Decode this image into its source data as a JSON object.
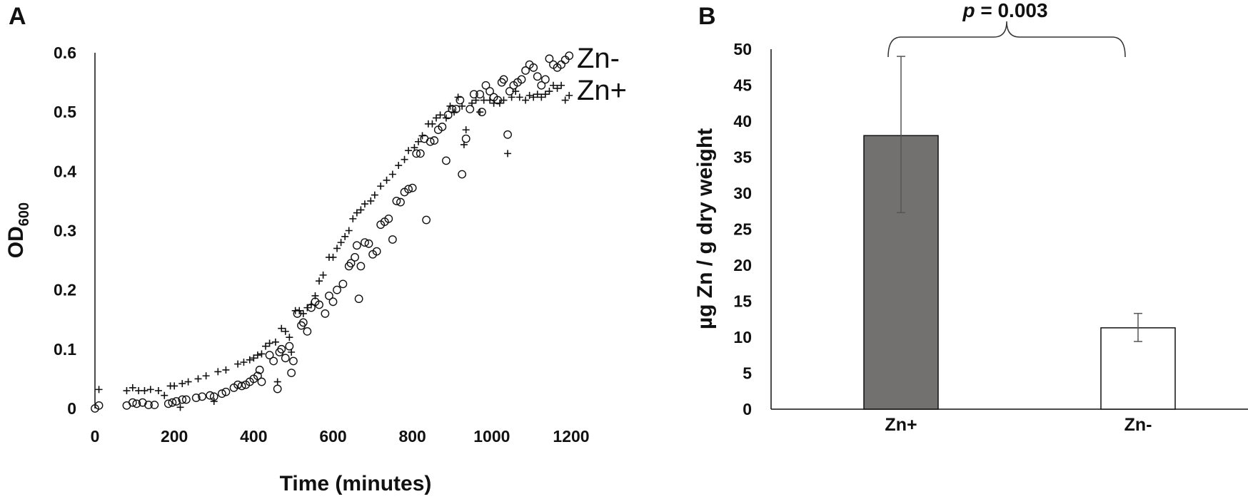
{
  "panels": {
    "a": {
      "letter": "A",
      "y_label_main": "OD",
      "y_label_sub": "600",
      "x_label": "Time (minutes)",
      "series_labels": {
        "zn_minus": "Zn-",
        "zn_plus": "Zn+"
      }
    },
    "b": {
      "letter": "B",
      "y_label": "µg Zn / g dry weight",
      "p_prefix": "p",
      "p_suffix": " = 0.003"
    }
  },
  "chart_data": [
    {
      "type": "scatter",
      "title": "",
      "xlabel": "Time (minutes)",
      "ylabel": "OD600",
      "xlim": [
        0,
        1200
      ],
      "ylim": [
        0,
        0.6
      ],
      "x_ticks": [
        "0",
        "200",
        "400",
        "600",
        "800",
        "1000",
        "1200"
      ],
      "y_ticks": [
        "0",
        "0.1",
        "0.2",
        "0.3",
        "0.4",
        "0.5",
        "0.6"
      ],
      "grid": false,
      "series": [
        {
          "name": "Zn-",
          "marker": "circle",
          "points": [
            [
              0,
              0.0
            ],
            [
              10,
              0.005
            ],
            [
              80,
              0.005
            ],
            [
              95,
              0.01
            ],
            [
              105,
              0.008
            ],
            [
              120,
              0.01
            ],
            [
              135,
              0.006
            ],
            [
              150,
              0.006
            ],
            [
              185,
              0.008
            ],
            [
              195,
              0.01
            ],
            [
              205,
              0.012
            ],
            [
              220,
              0.015
            ],
            [
              230,
              0.015
            ],
            [
              255,
              0.018
            ],
            [
              270,
              0.02
            ],
            [
              290,
              0.022
            ],
            [
              300,
              0.02
            ],
            [
              320,
              0.025
            ],
            [
              330,
              0.028
            ],
            [
              350,
              0.035
            ],
            [
              360,
              0.04
            ],
            [
              370,
              0.038
            ],
            [
              380,
              0.04
            ],
            [
              390,
              0.045
            ],
            [
              400,
              0.05
            ],
            [
              410,
              0.055
            ],
            [
              415,
              0.065
            ],
            [
              420,
              0.045
            ],
            [
              440,
              0.09
            ],
            [
              450,
              0.08
            ],
            [
              460,
              0.033
            ],
            [
              465,
              0.095
            ],
            [
              470,
              0.1
            ],
            [
              480,
              0.085
            ],
            [
              490,
              0.105
            ],
            [
              495,
              0.06
            ],
            [
              500,
              0.08
            ],
            [
              510,
              0.16
            ],
            [
              520,
              0.14
            ],
            [
              525,
              0.145
            ],
            [
              535,
              0.13
            ],
            [
              545,
              0.17
            ],
            [
              555,
              0.18
            ],
            [
              565,
              0.175
            ],
            [
              580,
              0.16
            ],
            [
              590,
              0.19
            ],
            [
              600,
              0.18
            ],
            [
              610,
              0.2
            ],
            [
              625,
              0.21
            ],
            [
              640,
              0.24
            ],
            [
              645,
              0.245
            ],
            [
              655,
              0.255
            ],
            [
              660,
              0.275
            ],
            [
              665,
              0.185
            ],
            [
              670,
              0.24
            ],
            [
              680,
              0.28
            ],
            [
              690,
              0.278
            ],
            [
              700,
              0.26
            ],
            [
              710,
              0.265
            ],
            [
              720,
              0.31
            ],
            [
              730,
              0.315
            ],
            [
              740,
              0.32
            ],
            [
              750,
              0.285
            ],
            [
              760,
              0.35
            ],
            [
              770,
              0.348
            ],
            [
              780,
              0.365
            ],
            [
              790,
              0.37
            ],
            [
              800,
              0.372
            ],
            [
              810,
              0.43
            ],
            [
              820,
              0.43
            ],
            [
              830,
              0.455
            ],
            [
              835,
              0.318
            ],
            [
              845,
              0.45
            ],
            [
              855,
              0.452
            ],
            [
              865,
              0.47
            ],
            [
              875,
              0.475
            ],
            [
              885,
              0.418
            ],
            [
              890,
              0.495
            ],
            [
              900,
              0.505
            ],
            [
              910,
              0.505
            ],
            [
              920,
              0.52
            ],
            [
              925,
              0.395
            ],
            [
              935,
              0.455
            ],
            [
              945,
              0.505
            ],
            [
              955,
              0.53
            ],
            [
              970,
              0.53
            ],
            [
              975,
              0.5
            ],
            [
              985,
              0.545
            ],
            [
              995,
              0.535
            ],
            [
              1005,
              0.525
            ],
            [
              1015,
              0.52
            ],
            [
              1025,
              0.55
            ],
            [
              1030,
              0.555
            ],
            [
              1040,
              0.462
            ],
            [
              1045,
              0.535
            ],
            [
              1055,
              0.545
            ],
            [
              1065,
              0.55
            ],
            [
              1075,
              0.555
            ],
            [
              1085,
              0.57
            ],
            [
              1095,
              0.58
            ],
            [
              1105,
              0.575
            ],
            [
              1115,
              0.56
            ],
            [
              1125,
              0.545
            ],
            [
              1135,
              0.555
            ],
            [
              1145,
              0.59
            ],
            [
              1155,
              0.58
            ],
            [
              1165,
              0.575
            ],
            [
              1175,
              0.58
            ],
            [
              1185,
              0.588
            ],
            [
              1195,
              0.595
            ]
          ]
        },
        {
          "name": "Zn+",
          "marker": "plus",
          "points": [
            [
              10,
              0.032
            ],
            [
              80,
              0.03
            ],
            [
              95,
              0.035
            ],
            [
              110,
              0.03
            ],
            [
              125,
              0.03
            ],
            [
              140,
              0.032
            ],
            [
              160,
              0.03
            ],
            [
              175,
              0.022
            ],
            [
              190,
              0.038
            ],
            [
              200,
              0.038
            ],
            [
              215,
              0.002
            ],
            [
              220,
              0.042
            ],
            [
              235,
              0.045
            ],
            [
              260,
              0.05
            ],
            [
              280,
              0.055
            ],
            [
              300,
              0.012
            ],
            [
              310,
              0.062
            ],
            [
              330,
              0.065
            ],
            [
              360,
              0.075
            ],
            [
              375,
              0.078
            ],
            [
              390,
              0.082
            ],
            [
              400,
              0.085
            ],
            [
              410,
              0.09
            ],
            [
              420,
              0.092
            ],
            [
              430,
              0.105
            ],
            [
              440,
              0.11
            ],
            [
              455,
              0.112
            ],
            [
              460,
              0.045
            ],
            [
              470,
              0.135
            ],
            [
              480,
              0.13
            ],
            [
              490,
              0.12
            ],
            [
              495,
              0.095
            ],
            [
              505,
              0.165
            ],
            [
              515,
              0.165
            ],
            [
              525,
              0.16
            ],
            [
              535,
              0.17
            ],
            [
              545,
              0.175
            ],
            [
              555,
              0.19
            ],
            [
              565,
              0.215
            ],
            [
              575,
              0.225
            ],
            [
              590,
              0.255
            ],
            [
              600,
              0.255
            ],
            [
              610,
              0.27
            ],
            [
              620,
              0.28
            ],
            [
              630,
              0.29
            ],
            [
              640,
              0.3
            ],
            [
              650,
              0.32
            ],
            [
              660,
              0.33
            ],
            [
              670,
              0.335
            ],
            [
              680,
              0.345
            ],
            [
              695,
              0.35
            ],
            [
              705,
              0.36
            ],
            [
              720,
              0.375
            ],
            [
              735,
              0.385
            ],
            [
              750,
              0.395
            ],
            [
              765,
              0.41
            ],
            [
              780,
              0.42
            ],
            [
              790,
              0.435
            ],
            [
              805,
              0.44
            ],
            [
              815,
              0.45
            ],
            [
              825,
              0.46
            ],
            [
              840,
              0.48
            ],
            [
              850,
              0.48
            ],
            [
              860,
              0.49
            ],
            [
              870,
              0.495
            ],
            [
              885,
              0.49
            ],
            [
              895,
              0.51
            ],
            [
              905,
              0.5
            ],
            [
              915,
              0.525
            ],
            [
              925,
              0.51
            ],
            [
              930,
              0.445
            ],
            [
              935,
              0.47
            ],
            [
              950,
              0.515
            ],
            [
              960,
              0.52
            ],
            [
              970,
              0.5
            ],
            [
              980,
              0.52
            ],
            [
              995,
              0.52
            ],
            [
              1005,
              0.515
            ],
            [
              1020,
              0.515
            ],
            [
              1030,
              0.52
            ],
            [
              1040,
              0.43
            ],
            [
              1050,
              0.525
            ],
            [
              1060,
              0.535
            ],
            [
              1070,
              0.525
            ],
            [
              1085,
              0.52
            ],
            [
              1095,
              0.528
            ],
            [
              1105,
              0.525
            ],
            [
              1115,
              0.53
            ],
            [
              1125,
              0.525
            ],
            [
              1135,
              0.53
            ],
            [
              1145,
              0.535
            ],
            [
              1155,
              0.545
            ],
            [
              1165,
              0.54
            ],
            [
              1175,
              0.545
            ],
            [
              1185,
              0.52
            ],
            [
              1195,
              0.528
            ]
          ]
        }
      ]
    },
    {
      "type": "bar",
      "title": "",
      "xlabel": "",
      "ylabel": "µg Zn / g dry weight",
      "ylim": [
        0,
        50
      ],
      "y_ticks": [
        "0",
        "5",
        "10",
        "15",
        "20",
        "25",
        "30",
        "35",
        "40",
        "45",
        "50"
      ],
      "categories": [
        "Zn+",
        "Zn-"
      ],
      "values": [
        38,
        11.3
      ],
      "error_low": [
        27.3,
        9.4
      ],
      "error_high": [
        49.0,
        13.3
      ],
      "bar_colors": [
        "#737170",
        "#ffffff"
      ],
      "annotation": "p = 0.003",
      "grid": false
    }
  ]
}
